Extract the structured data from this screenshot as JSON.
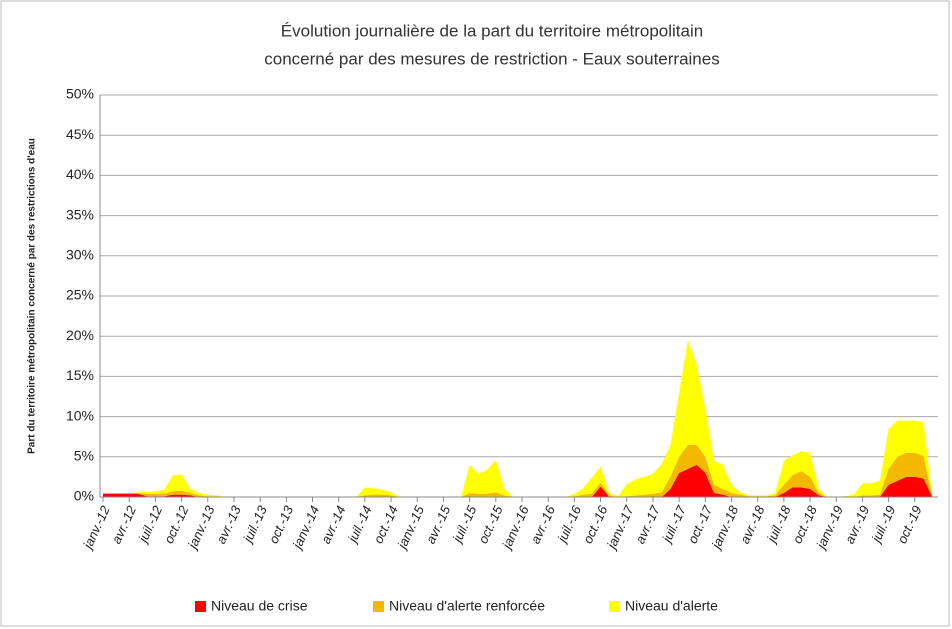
{
  "chart_data": {
    "type": "stacked_area",
    "title": [
      "Évolution journalière de la part du territoire métropolitain",
      "concerné par des mesures de restriction - Eaux souterraines"
    ],
    "y_label": "Part du territoire métropolitain concerné par des restrictions d'eau",
    "categories": [
      "janv.-12",
      null,
      null,
      "avr.-12",
      null,
      null,
      "juil.-12",
      null,
      null,
      "oct.-12",
      null,
      null,
      "janv.-13",
      null,
      null,
      "avr.-13",
      null,
      null,
      "juil.-13",
      null,
      null,
      "oct.-13",
      null,
      null,
      "janv.-14",
      null,
      null,
      "avr.-14",
      null,
      null,
      "juil.-14",
      null,
      null,
      "oct.-14",
      null,
      null,
      "janv.-15",
      null,
      null,
      "avr.-15",
      null,
      null,
      "juil.-15",
      null,
      null,
      "oct.-15",
      null,
      null,
      "janv.-16",
      null,
      null,
      "avr.-16",
      null,
      null,
      "juil.-16",
      null,
      null,
      "oct.-16",
      null,
      null,
      "janv.-17",
      null,
      null,
      "avr.-17",
      null,
      null,
      "juil.-17",
      null,
      null,
      "oct.-17",
      null,
      null,
      "janv.-18",
      null,
      null,
      "avr.-18",
      null,
      null,
      "juil.-18",
      null,
      null,
      "oct.-18",
      null,
      null,
      "janv.-19",
      null,
      null,
      "avr.-19",
      null,
      null,
      "juil.-19",
      null,
      null,
      "oct.-19",
      null,
      null
    ],
    "series": [
      {
        "name": "Niveau de crise",
        "color": "#ff0000",
        "values": [
          0.4,
          0.4,
          0.4,
          0.4,
          0.4,
          0.1,
          0.1,
          0.1,
          0.3,
          0.3,
          0.2,
          0,
          0,
          0,
          0,
          0,
          0,
          0,
          0,
          0,
          0,
          0,
          0,
          0,
          0,
          0,
          0,
          0,
          0,
          0,
          0,
          0,
          0,
          0,
          0,
          0,
          0,
          0,
          0,
          0,
          0,
          0,
          0,
          0,
          0,
          0,
          0,
          0,
          0,
          0,
          0,
          0,
          0,
          0,
          0,
          0,
          0,
          1.3,
          0,
          0,
          0,
          0,
          0,
          0,
          0,
          1,
          3,
          3.5,
          4,
          3,
          0.5,
          0.3,
          0,
          0,
          0,
          0,
          0,
          0,
          0.5,
          1.2,
          1.2,
          1,
          0.2,
          0,
          0,
          0,
          0,
          0,
          0,
          0,
          1.5,
          2,
          2.5,
          2.5,
          2.3,
          0
        ]
      },
      {
        "name": "Niveau d'alerte renforcée",
        "color": "#f5b800",
        "values": [
          0.1,
          0.1,
          0.1,
          0.1,
          0.1,
          0.3,
          0.3,
          0.3,
          0.4,
          0.5,
          0.3,
          0.2,
          0.1,
          0.1,
          0,
          0,
          0,
          0,
          0,
          0,
          0,
          0,
          0,
          0,
          0,
          0,
          0,
          0,
          0,
          0,
          0.2,
          0.3,
          0.3,
          0.2,
          0,
          0,
          0,
          0,
          0,
          0,
          0,
          0,
          0.5,
          0.4,
          0.4,
          0.6,
          0.2,
          0,
          0,
          0,
          0,
          0,
          0,
          0,
          0.1,
          0.3,
          0.4,
          0.5,
          0.2,
          0,
          0.1,
          0.2,
          0.3,
          0.4,
          0.6,
          1.5,
          2,
          3,
          2.5,
          2,
          1,
          0.7,
          0.5,
          0.3,
          0.1,
          0.1,
          0.1,
          0.2,
          1,
          1.5,
          2,
          1.5,
          0.3,
          0,
          0,
          0,
          0,
          0.2,
          0.2,
          0.3,
          2,
          3,
          3,
          3,
          2.8,
          0
        ]
      },
      {
        "name": "Niveau d'alerte",
        "color": "#ffff00",
        "values": [
          0,
          0,
          0,
          0,
          0.1,
          0.2,
          0.3,
          0.5,
          2,
          2,
          0.5,
          0.3,
          0.2,
          0.1,
          0,
          0,
          0,
          0,
          0,
          0,
          0,
          0,
          0,
          0,
          0,
          0,
          0,
          0,
          0,
          0,
          1,
          0.8,
          0.6,
          0.4,
          0,
          0,
          0,
          0,
          0,
          0,
          0,
          0,
          3.5,
          2.5,
          3,
          4,
          0.8,
          0,
          0,
          0,
          0,
          0,
          0,
          0,
          0.3,
          0.8,
          2,
          2,
          0.3,
          0.1,
          1.5,
          2,
          2.2,
          2.5,
          3.5,
          4,
          8,
          13,
          10,
          6,
          3,
          3,
          1,
          0.3,
          0.1,
          0.1,
          0.1,
          0.3,
          3,
          2.5,
          2.5,
          3,
          0.5,
          0,
          0,
          0.1,
          0.3,
          1.5,
          1.5,
          1.7,
          5,
          4.5,
          4,
          4,
          4.2,
          0
        ]
      }
    ],
    "ylim": [
      0,
      50
    ],
    "yticks": [
      {
        "value": 0,
        "label": "0%"
      },
      {
        "value": 5,
        "label": "5%"
      },
      {
        "value": 10,
        "label": "10%"
      },
      {
        "value": 15,
        "label": "15%"
      },
      {
        "value": 20,
        "label": "20%"
      },
      {
        "value": 25,
        "label": "25%"
      },
      {
        "value": 30,
        "label": "30%"
      },
      {
        "value": 35,
        "label": "35%"
      },
      {
        "value": 40,
        "label": "40%"
      },
      {
        "value": 45,
        "label": "45%"
      },
      {
        "value": 50,
        "label": "50%"
      }
    ],
    "grid": true,
    "legend": "bottom"
  }
}
